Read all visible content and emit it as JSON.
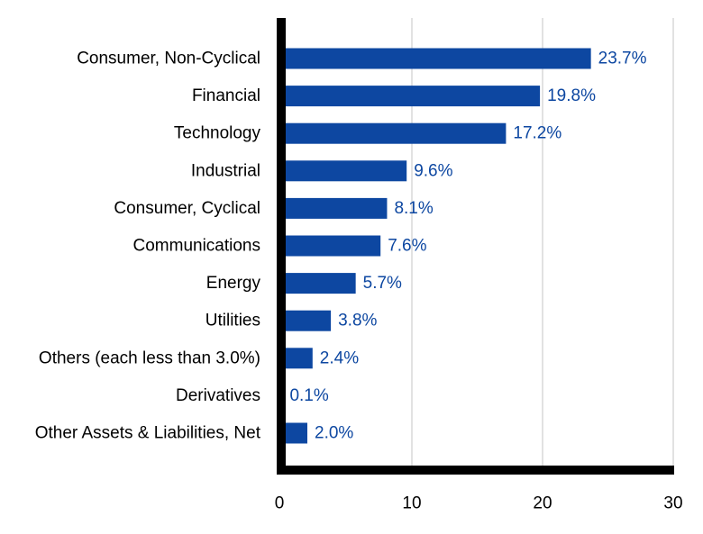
{
  "chart_data": {
    "type": "bar",
    "orientation": "horizontal",
    "title": "",
    "xlabel": "",
    "ylabel": "",
    "categories": [
      "Consumer, Non-Cyclical",
      "Financial",
      "Technology",
      "Industrial",
      "Consumer, Cyclical",
      "Communications",
      "Energy",
      "Utilities",
      "Others (each less than 3.0%)",
      "Derivatives",
      "Other Assets & Liabilities, Net"
    ],
    "values": [
      23.7,
      19.8,
      17.2,
      9.6,
      8.1,
      7.6,
      5.7,
      3.8,
      2.4,
      0.1,
      2.0
    ],
    "data_labels": [
      "23.7%",
      "19.8%",
      "17.2%",
      "9.6%",
      "8.1%",
      "7.6%",
      "5.7%",
      "3.8%",
      "2.4%",
      "0.1%",
      "2.0%"
    ],
    "xlim": [
      0,
      30
    ],
    "xticks": [
      0,
      10,
      20,
      30
    ],
    "xtick_labels": [
      "0",
      "10",
      "20",
      "30"
    ],
    "grid": true,
    "legend": "none",
    "colors": {
      "bar": "#0d47a1",
      "data_label": "#0d47a1",
      "axis": "#000000",
      "grid": "#d9d9d9",
      "text": "#000000"
    }
  }
}
